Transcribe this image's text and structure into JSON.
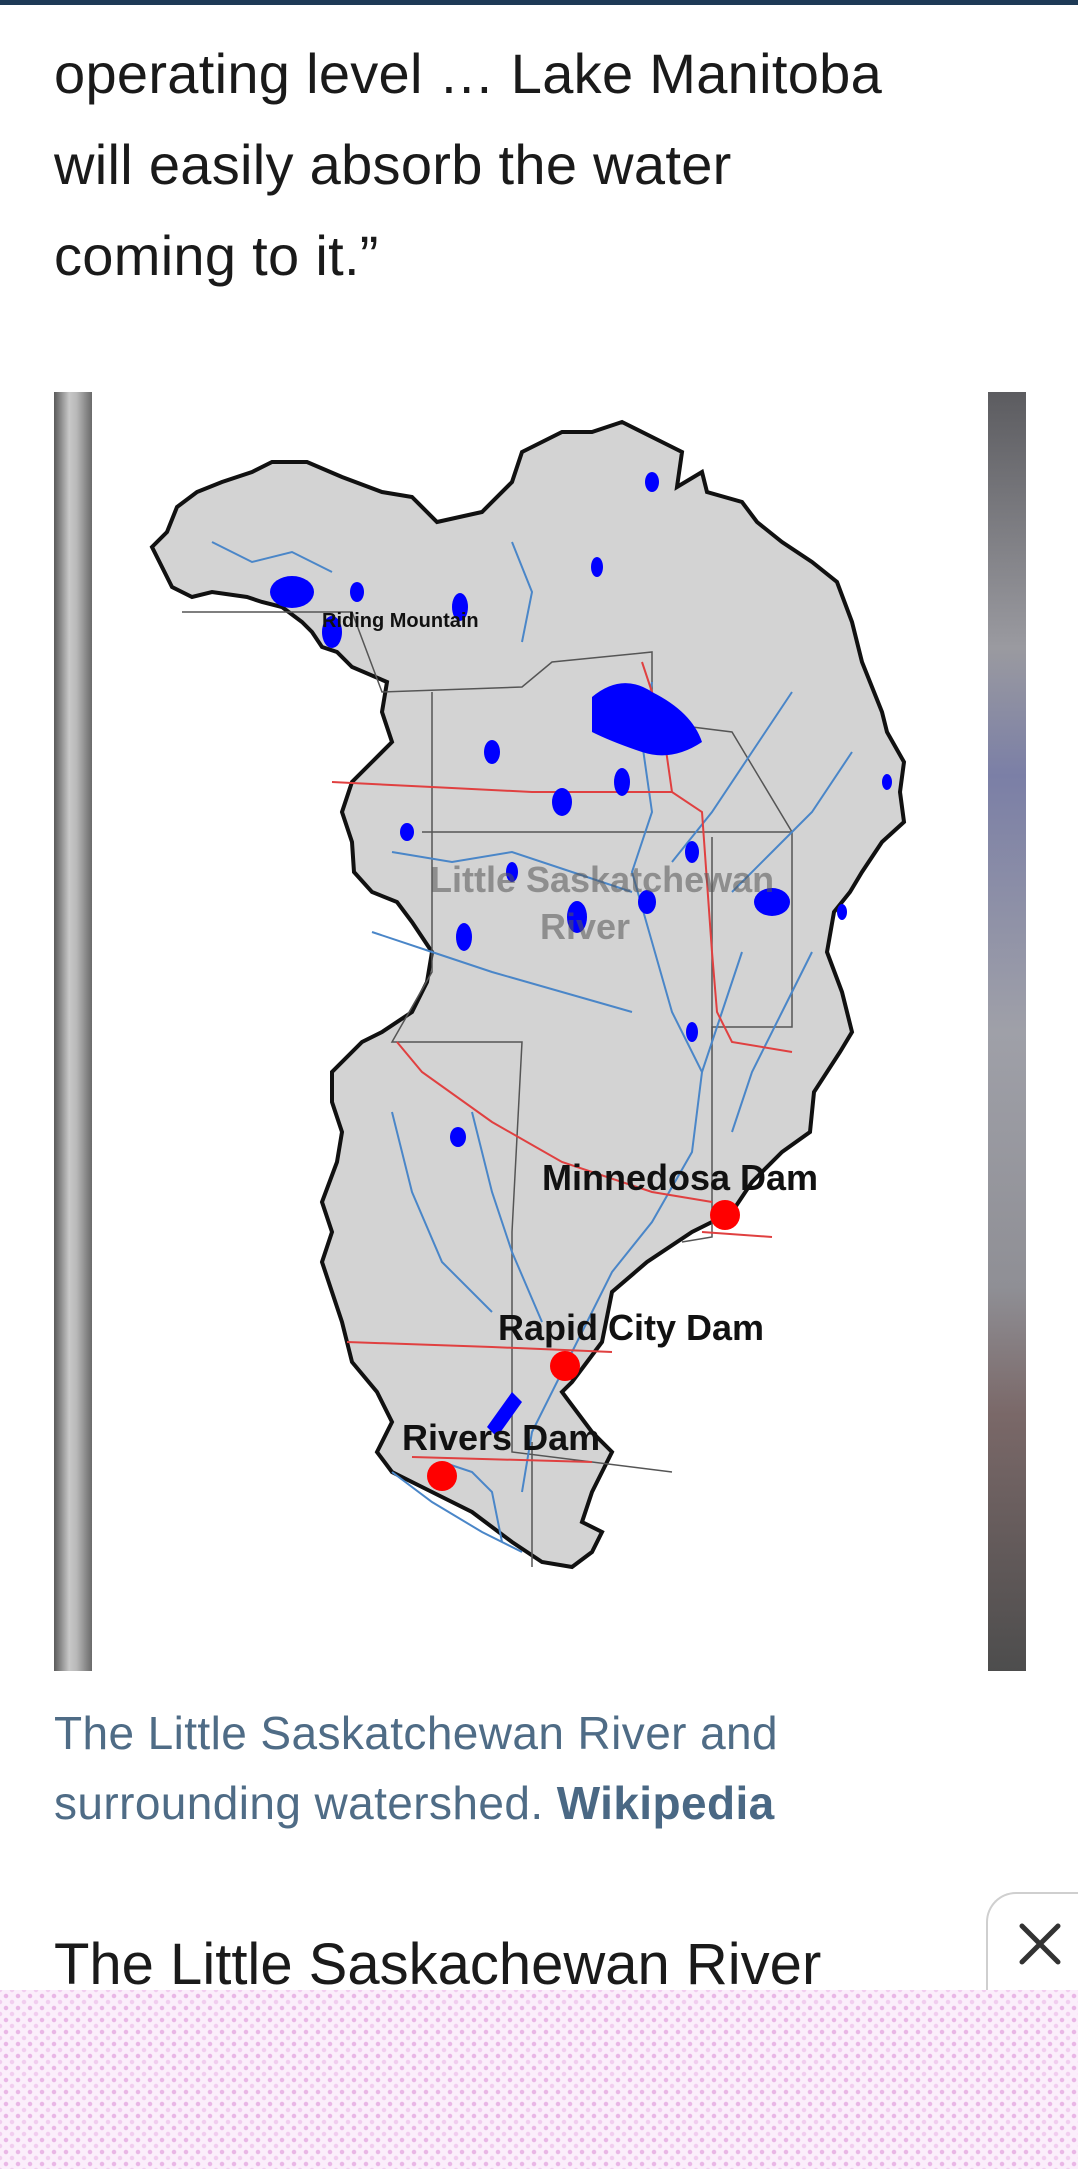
{
  "article": {
    "paragraph_lines": [
      "operating level … Lake Manitoba",
      "will easily absorb the water",
      "coming to it.”"
    ],
    "figure": {
      "map_labels": {
        "riding_mountain": "Riding Mountain",
        "river_line1": "Little Saskatchewan",
        "river_line2": "River",
        "minnedosa_dam": "Minnedosa Dam",
        "rapid_city_dam": "Rapid City Dam",
        "rivers_dam": "Rivers Dam"
      },
      "colors": {
        "land": "#d3d3d3",
        "lakes": "#0000ff",
        "rivers": "#4a86c8",
        "roads": "#e04040",
        "dams": "#ff0000"
      }
    },
    "caption": {
      "text": "The Little Saskatchewan River and surrounding watershed.",
      "credit": "Wikipedia"
    },
    "next_heading": "The Little Saskachewan River"
  },
  "ad": {
    "close_icon": "close-icon"
  },
  "theme": {
    "top_rule": "#1e3a56",
    "caption_color": "#4f6c86"
  }
}
